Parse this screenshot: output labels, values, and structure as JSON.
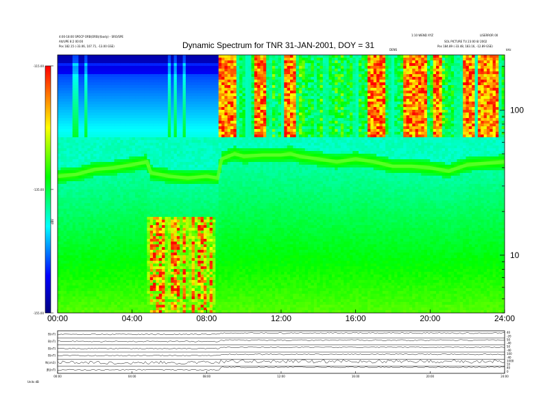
{
  "chart_data": {
    "type": "heatmap",
    "title": "Dynamic Spectrum for TNR 31-JAN-2001, DOY = 31",
    "header_left": [
      "4:00-18:00 SPOCP ORB(ORB)/(body) - SRO/SPE",
      "Alt/UPE 8:2 00:00",
      "Pos 182.15 (-33.06, 107.71, -13.00 GSE)"
    ],
    "header_right": [
      "1:10 WEND XYZ",
      "LISERROR 00",
      "SOL PICTURE TU 23:00 8/ 2002",
      "Pos 184.89 (-33.48, 183.16, -12.89 GSE)"
    ],
    "header_center": "DENS",
    "colorbar": {
      "ticks": [
        -115.0,
        -135.0,
        -155.0
      ],
      "label": "dBV",
      "range": [
        -155,
        -115
      ]
    },
    "x_axis": {
      "range": [
        0,
        24
      ],
      "ticks": [
        "00:00",
        "04:00",
        "08:00",
        "12:00",
        "16:00",
        "20:00",
        "24:00"
      ]
    },
    "y_axis": {
      "scale": "log",
      "range": [
        4,
        240
      ],
      "ticks": [
        10,
        100
      ],
      "unit_label": "kHz"
    },
    "features": {
      "plasma_line_khz": [
        [
          0,
          35
        ],
        [
          1,
          36
        ],
        [
          2,
          39
        ],
        [
          3,
          40
        ],
        [
          4,
          42
        ],
        [
          4.8,
          44
        ],
        [
          5,
          37
        ],
        [
          6,
          35
        ],
        [
          7,
          34
        ],
        [
          8,
          35
        ],
        [
          8.6,
          34
        ],
        [
          8.8,
          46
        ],
        [
          9.5,
          50
        ],
        [
          10,
          48
        ],
        [
          11,
          49
        ],
        [
          12,
          49
        ],
        [
          12.5,
          50
        ],
        [
          13,
          48
        ],
        [
          14,
          46
        ],
        [
          15,
          44
        ],
        [
          16,
          46
        ],
        [
          17,
          44
        ],
        [
          18,
          41
        ],
        [
          19,
          41
        ],
        [
          20,
          40
        ],
        [
          21,
          38
        ],
        [
          22,
          42
        ],
        [
          23,
          43
        ],
        [
          24,
          44
        ]
      ],
      "intense_bursts_hours": [
        [
          8.6,
          9.6
        ],
        [
          10.6,
          11.2
        ],
        [
          12.2,
          12.8
        ],
        [
          16.6,
          17.6
        ],
        [
          18.6,
          19.8
        ],
        [
          20.1,
          20.7
        ],
        [
          21.7,
          22.4
        ],
        [
          22.6,
          23.6
        ]
      ],
      "low_frequency_bursts_hours": [
        [
          4.8,
          8.5
        ]
      ]
    }
  },
  "lower_panels": {
    "row_labels": [
      "B(nT)",
      "B(nT)",
      "B(nT)",
      "B(nT)",
      "N(cm3)",
      "|B|(nT)"
    ],
    "right_ticks": [
      [
        "40",
        "-20"
      ],
      [
        "50",
        "-40"
      ],
      [
        "50",
        "-40"
      ],
      [
        "100",
        "-40"
      ],
      [
        "1000",
        "10"
      ],
      [
        "40",
        "0"
      ]
    ],
    "x_ticks": [
      "00:00",
      "04:00",
      "08:00",
      "12:00",
      "16:00",
      "20:00",
      "24:00"
    ],
    "footer_label": "Units  dB"
  }
}
